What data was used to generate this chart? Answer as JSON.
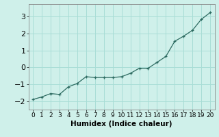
{
  "x": [
    0,
    1,
    2,
    3,
    4,
    5,
    6,
    7,
    8,
    9,
    10,
    11,
    12,
    13,
    14,
    15,
    16,
    17,
    18,
    19,
    20
  ],
  "y": [
    -1.9,
    -1.75,
    -1.55,
    -1.6,
    -1.15,
    -0.95,
    -0.55,
    -0.6,
    -0.6,
    -0.6,
    -0.55,
    -0.35,
    -0.05,
    -0.05,
    0.3,
    0.65,
    1.55,
    1.85,
    2.2,
    2.85,
    3.25
  ],
  "line_color": "#2d6b61",
  "marker": "+",
  "marker_color": "#2d6b61",
  "bg_color": "#cff0ea",
  "grid_color": "#a8ddd6",
  "xlabel": "Humidex (Indice chaleur)",
  "xlabel_fontsize": 7.5,
  "tick_fontsize": 7,
  "xlim": [
    -0.5,
    20.5
  ],
  "ylim": [
    -2.5,
    3.75
  ],
  "yticks": [
    -2,
    -1,
    0,
    1,
    2,
    3
  ],
  "xticks": [
    0,
    1,
    2,
    3,
    4,
    5,
    6,
    7,
    8,
    9,
    10,
    11,
    12,
    13,
    14,
    15,
    16,
    17,
    18,
    19,
    20
  ]
}
